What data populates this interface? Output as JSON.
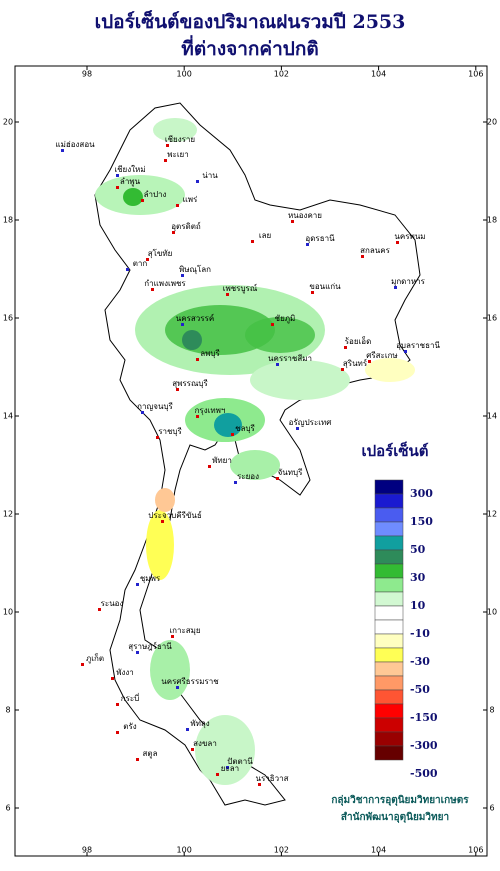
{
  "title": [
    "เปอร์เซ็นต์ของปริมาณฝนรวมปี 2553",
    "ที่ต่างจากค่าปกติ"
  ],
  "map": {
    "lon_ticks": [
      98,
      100,
      102,
      104,
      106
    ],
    "lat_ticks": [
      6,
      8,
      10,
      12,
      14,
      16,
      18,
      20
    ],
    "places": [
      "แม่ฮ่องสอน",
      "เชียงราย",
      "พะเยา",
      "เชียงใหม่",
      "ลำพูน",
      "ลำปาง",
      "น่าน",
      "แพร่",
      "อุตรดิตถ์",
      "ตาก",
      "สุโขทัย",
      "กำแพงเพชร",
      "พิษณุโลก",
      "เลย",
      "หนองคาย",
      "อุดรธานี",
      "สกลนคร",
      "นครพนม",
      "มุกดาหาร",
      "ขอนแก่น",
      "เพชรบูรณ์",
      "นครสวรรค์",
      "ชัยภูมิ",
      "ร้อยเอ็ด",
      "อุบลราชธานี",
      "ศรีสะเกษ",
      "สุรินทร์",
      "นครราชสีมา",
      "ลพบุรี",
      "สุพรรณบุรี",
      "กาญจนบุรี",
      "กรุงเทพฯ",
      "ราชบุรี",
      "อรัญประเทศ",
      "ชลบุรี",
      "พัทยา",
      "ระยอง",
      "จันทบุรี",
      "ประจวบคีรีขันธ์",
      "ชุมพร",
      "ระนอง",
      "เกาะสมุย",
      "สุราษฎร์ธานี",
      "ภูเก็ต",
      "พังงา",
      "นครศรีธรรมราช",
      "กระบี่",
      "ตรัง",
      "พัทลุง",
      "สงขลา",
      "สตูล",
      "ปัตตานี",
      "ยะลา",
      "นราธิวาส"
    ],
    "legend": {
      "title": "เปอร์เซ็นต์",
      "colors": [
        "#000080",
        "#1a1ad0",
        "#4a5cf0",
        "#6f8cff",
        "#119f9f",
        "#2e8b5a",
        "#33bb33",
        "#8eea8e",
        "#d2f8d2",
        "#ffffff",
        "#ffffff",
        "#ffffc0",
        "#ffff55",
        "#ffc895",
        "#ff9966",
        "#ff5533",
        "#ff0000",
        "#cc0000",
        "#990000",
        "#660000"
      ],
      "labels": [
        "300",
        "150",
        "50",
        "30",
        "10",
        "-10",
        "-30",
        "-50",
        "-150",
        "-300",
        "-500"
      ]
    },
    "credit": [
      "กลุ่มวิชาการอุตุนิยมวิทยาเกษตร",
      "สำนักพัฒนาอุตุนิยมวิทยา"
    ]
  }
}
